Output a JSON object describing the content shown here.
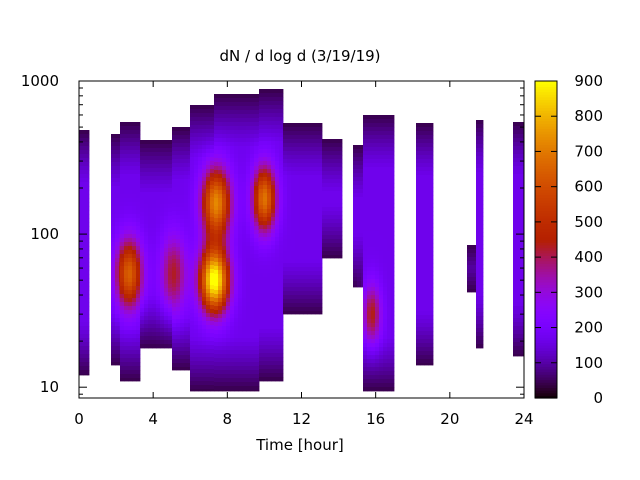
{
  "chart_data": {
    "type": "heatmap",
    "title": "dN / d log d (3/19/19)",
    "xlabel": "Time [hour]",
    "ylabel": "",
    "xlim": [
      0,
      24
    ],
    "ylim": [
      8.5,
      1000
    ],
    "y_scale": "log",
    "x_ticks": [
      "0",
      "4",
      "8",
      "12",
      "16",
      "20",
      "24"
    ],
    "y_ticks": [
      "10",
      "100",
      "1000"
    ],
    "colorbar": {
      "range": [
        0,
        900
      ],
      "ticks": [
        "0",
        "100",
        "200",
        "300",
        "400",
        "500",
        "600",
        "700",
        "800",
        "900"
      ],
      "palette": "gnuplot"
    },
    "columns": [
      {
        "x0": 0.0,
        "x1": 0.55,
        "dmin": 12,
        "dmax": 480
      },
      {
        "x0": 1.7,
        "x1": 2.2,
        "dmin": 14,
        "dmax": 450
      },
      {
        "x0": 2.2,
        "x1": 3.3,
        "dmin": 11,
        "dmax": 540
      },
      {
        "x0": 3.3,
        "x1": 5.0,
        "dmin": 18,
        "dmax": 410
      },
      {
        "x0": 5.0,
        "x1": 6.0,
        "dmin": 13,
        "dmax": 500
      },
      {
        "x0": 6.0,
        "x1": 7.3,
        "dmin": 9.5,
        "dmax": 700
      },
      {
        "x0": 7.3,
        "x1": 9.7,
        "dmin": 9.5,
        "dmax": 820
      },
      {
        "x0": 9.7,
        "x1": 11.0,
        "dmin": 11,
        "dmax": 880
      },
      {
        "x0": 11.0,
        "x1": 13.1,
        "dmin": 30,
        "dmax": 530
      },
      {
        "x0": 13.1,
        "x1": 14.2,
        "dmin": 70,
        "dmax": 420
      },
      {
        "x0": 14.8,
        "x1": 15.3,
        "dmin": 45,
        "dmax": 380
      },
      {
        "x0": 15.3,
        "x1": 17.0,
        "dmin": 9.5,
        "dmax": 600
      },
      {
        "x0": 18.2,
        "x1": 19.1,
        "dmin": 14,
        "dmax": 530
      },
      {
        "x0": 20.9,
        "x1": 21.4,
        "dmin": 42,
        "dmax": 85
      },
      {
        "x0": 21.4,
        "x1": 21.8,
        "dmin": 18,
        "dmax": 560
      },
      {
        "x0": 23.4,
        "x1": 24.0,
        "dmin": 16,
        "dmax": 540
      }
    ],
    "modes": [
      {
        "t": 2.7,
        "d": 55,
        "peak": 480,
        "wt": 0.5,
        "wd": 0.16
      },
      {
        "t": 5.1,
        "d": 55,
        "peak": 260,
        "wt": 0.5,
        "wd": 0.18
      },
      {
        "t": 7.3,
        "d": 50,
        "peak": 760,
        "wt": 0.55,
        "wd": 0.15
      },
      {
        "t": 7.4,
        "d": 160,
        "peak": 560,
        "wt": 0.55,
        "wd": 0.16
      },
      {
        "t": 10.0,
        "d": 170,
        "peak": 520,
        "wt": 0.45,
        "wd": 0.15
      },
      {
        "t": 15.8,
        "d": 30,
        "peak": 270,
        "wt": 0.35,
        "wd": 0.14
      }
    ],
    "background_level": 170
  }
}
